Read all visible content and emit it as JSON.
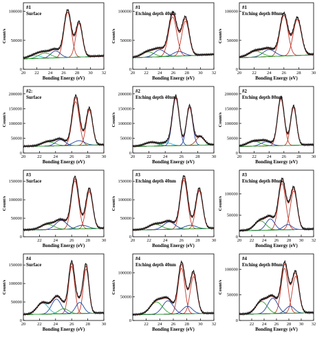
{
  "figure": {
    "colors": {
      "envelope": "#1a1a1a",
      "fit": "#c0392b",
      "background": "#2ca02c",
      "comp_blue": "#1f3f9c",
      "comp_cyan": "#17becf",
      "comp_green": "#2ca02c",
      "comp_red": "#c0392b",
      "comp_navy": "#1f3f9c"
    }
  },
  "chart_data": [
    {
      "type": "line",
      "sample_label": "#1",
      "condition": "Surface",
      "xlabel": "Bonding Energy (eV)",
      "ylabel": "Count/s",
      "xlim": [
        20,
        32
      ],
      "ylim": [
        0,
        115000
      ],
      "xticks": [
        20,
        22,
        24,
        26,
        28,
        30,
        32
      ],
      "yticks": [
        0,
        50000,
        100000
      ],
      "ytick_labels": [
        "0",
        "50000",
        "100000"
      ],
      "baseline": 18000,
      "peaks": [
        {
          "center": 26.6,
          "height": 78000,
          "width": 0.55,
          "color": "comp_red"
        },
        {
          "center": 28.3,
          "height": 58000,
          "width": 0.5,
          "color": "comp_red"
        },
        {
          "center": 24.8,
          "height": 12000,
          "width": 0.7,
          "color": "comp_blue"
        },
        {
          "center": 23.2,
          "height": 9000,
          "width": 0.9,
          "color": "comp_green"
        },
        {
          "center": 21.7,
          "height": 5000,
          "width": 0.9,
          "color": "comp_cyan"
        }
      ]
    },
    {
      "type": "line",
      "sample_label": "#1",
      "condition": "Etching depth 40nm",
      "xlabel": "Bonding Energy (eV)",
      "ylabel": "Count/s",
      "xlim": [
        20,
        32
      ],
      "ylim": [
        0,
        115000
      ],
      "xticks": [
        20,
        22,
        24,
        26,
        28,
        30,
        32
      ],
      "yticks": [
        0,
        50000,
        100000
      ],
      "ytick_labels": [
        "0",
        "50000",
        "100000"
      ],
      "baseline": 20000,
      "peaks": [
        {
          "center": 25.9,
          "height": 68000,
          "width": 0.6,
          "color": "comp_red"
        },
        {
          "center": 27.8,
          "height": 60000,
          "width": 0.55,
          "color": "comp_red"
        },
        {
          "center": 24.0,
          "height": 12000,
          "width": 0.8,
          "color": "comp_blue"
        },
        {
          "center": 22.3,
          "height": 9000,
          "width": 0.9,
          "color": "comp_green"
        },
        {
          "center": 26.8,
          "height": 8000,
          "width": 0.8,
          "color": "comp_navy"
        }
      ]
    },
    {
      "type": "line",
      "sample_label": "#1",
      "condition": "Etching depth 80nm",
      "xlabel": "Bonding Energy (eV)",
      "ylabel": "Count/s",
      "xlim": [
        20,
        30
      ],
      "ylim": [
        0,
        115000
      ],
      "xticks": [
        20,
        22,
        24,
        26,
        28,
        30
      ],
      "yticks": [
        0,
        50000,
        100000
      ],
      "ytick_labels": [
        "0",
        "50000",
        "100000"
      ],
      "baseline": 20000,
      "peaks": [
        {
          "center": 26.0,
          "height": 70000,
          "width": 0.55,
          "color": "comp_red"
        },
        {
          "center": 27.8,
          "height": 62000,
          "width": 0.55,
          "color": "comp_red"
        },
        {
          "center": 24.0,
          "height": 12000,
          "width": 0.8,
          "color": "comp_blue"
        },
        {
          "center": 22.2,
          "height": 10000,
          "width": 0.9,
          "color": "comp_green"
        }
      ]
    },
    {
      "type": "line",
      "sample_label": "#2:",
      "condition": "Surface",
      "xlabel": "Bonding Energy (eV)",
      "ylabel": "Count/s",
      "xlim": [
        20,
        30
      ],
      "ylim": [
        0,
        225000
      ],
      "xticks": [
        20,
        22,
        24,
        26,
        28,
        30
      ],
      "yticks": [
        0,
        50000,
        100000,
        150000,
        200000
      ],
      "ytick_labels": [
        "0",
        "50000",
        "100000",
        "150000",
        "200000"
      ],
      "baseline": 22000,
      "peaks": [
        {
          "center": 26.5,
          "height": 148000,
          "width": 0.45,
          "color": "comp_red"
        },
        {
          "center": 28.2,
          "height": 118000,
          "width": 0.4,
          "color": "comp_red"
        },
        {
          "center": 24.6,
          "height": 20000,
          "width": 0.6,
          "color": "comp_blue"
        },
        {
          "center": 23.1,
          "height": 14000,
          "width": 0.8,
          "color": "comp_green"
        },
        {
          "center": 26.9,
          "height": 16000,
          "width": 0.7,
          "color": "comp_navy"
        }
      ]
    },
    {
      "type": "line",
      "sample_label": "#2",
      "condition": "Etching depth 40nm",
      "xlabel": "Bonding Energy (eV)",
      "ylabel": "Count/s",
      "xlim": [
        20,
        30
      ],
      "ylim": [
        0,
        225000
      ],
      "xticks": [
        20,
        22,
        24,
        26,
        28,
        30
      ],
      "yticks": [
        0,
        50000,
        100000,
        150000,
        200000
      ],
      "ytick_labels": [
        "0",
        "50000",
        "100000",
        "150000",
        "200000"
      ],
      "baseline": 22000,
      "peaks": [
        {
          "center": 25.3,
          "height": 160000,
          "width": 0.42,
          "color": "comp_navy"
        },
        {
          "center": 27.0,
          "height": 128000,
          "width": 0.38,
          "color": "comp_navy"
        },
        {
          "center": 24.2,
          "height": 10000,
          "width": 0.6,
          "color": "comp_cyan"
        },
        {
          "center": 22.3,
          "height": 12000,
          "width": 0.8,
          "color": "comp_green"
        },
        {
          "center": 28.3,
          "height": 28000,
          "width": 0.5,
          "color": "comp_red"
        }
      ]
    },
    {
      "type": "line",
      "sample_label": "#2",
      "condition": "Etching depth 80nm",
      "xlabel": "Bonding Energy (eV)",
      "ylabel": "Count/s",
      "xlim": [
        20,
        30
      ],
      "ylim": [
        0,
        225000
      ],
      "xticks": [
        20,
        22,
        24,
        26,
        28,
        30
      ],
      "yticks": [
        0,
        50000,
        100000,
        150000,
        200000
      ],
      "ytick_labels": [
        "0",
        "50000",
        "100000",
        "150000",
        "200000"
      ],
      "baseline": 22000,
      "peaks": [
        {
          "center": 25.6,
          "height": 158000,
          "width": 0.45,
          "color": "comp_red"
        },
        {
          "center": 27.3,
          "height": 128000,
          "width": 0.4,
          "color": "comp_red"
        },
        {
          "center": 23.6,
          "height": 14000,
          "width": 0.7,
          "color": "comp_blue"
        },
        {
          "center": 22.0,
          "height": 16000,
          "width": 0.9,
          "color": "comp_green"
        }
      ]
    },
    {
      "type": "line",
      "sample_label": "#3",
      "condition": "Surface",
      "xlabel": "Bonding Energy (eV)",
      "ylabel": "Count/s",
      "xlim": [
        20,
        30
      ],
      "ylim": [
        0,
        180000
      ],
      "xticks": [
        22,
        24,
        26,
        28,
        30
      ],
      "yticks": [
        0,
        50000,
        100000,
        150000
      ],
      "ytick_labels": [
        "0",
        "50000",
        "100000",
        "150000"
      ],
      "baseline": 18000,
      "peaks": [
        {
          "center": 26.4,
          "height": 130000,
          "width": 0.45,
          "color": "comp_red"
        },
        {
          "center": 28.2,
          "height": 100000,
          "width": 0.42,
          "color": "comp_red"
        },
        {
          "center": 24.7,
          "height": 24000,
          "width": 0.7,
          "color": "comp_navy"
        },
        {
          "center": 23.0,
          "height": 14000,
          "width": 0.8,
          "color": "comp_green"
        },
        {
          "center": 27.3,
          "height": 10000,
          "width": 0.7,
          "color": "comp_blue"
        }
      ]
    },
    {
      "type": "line",
      "sample_label": "#3",
      "condition": "Etching depth 40nm",
      "xlabel": "Bonding Energy (eV)",
      "ylabel": "Count/s",
      "xlim": [
        20,
        30
      ],
      "ylim": [
        0,
        180000
      ],
      "xticks": [
        20,
        22,
        24,
        26,
        28,
        30
      ],
      "yticks": [
        0,
        50000,
        100000,
        150000
      ],
      "ytick_labels": [
        "0",
        "50000",
        "100000",
        "150000"
      ],
      "baseline": 18000,
      "peaks": [
        {
          "center": 26.3,
          "height": 132000,
          "width": 0.45,
          "color": "comp_red"
        },
        {
          "center": 28.2,
          "height": 102000,
          "width": 0.42,
          "color": "comp_red"
        },
        {
          "center": 24.5,
          "height": 20000,
          "width": 0.7,
          "color": "comp_blue"
        },
        {
          "center": 22.8,
          "height": 14000,
          "width": 0.8,
          "color": "comp_green"
        },
        {
          "center": 27.1,
          "height": 10000,
          "width": 0.7,
          "color": "comp_navy"
        }
      ]
    },
    {
      "type": "line",
      "sample_label": "#3",
      "condition": "Etching depth 80nm",
      "xlabel": "Bonding Energy (eV)",
      "ylabel": "Count/s",
      "xlim": [
        20,
        32
      ],
      "ylim": [
        0,
        155000
      ],
      "xticks": [
        20,
        22,
        24,
        26,
        28,
        30,
        32
      ],
      "yticks": [
        0,
        50000,
        100000
      ],
      "ytick_labels": [
        "0",
        "50000",
        "100000"
      ],
      "baseline": 14000,
      "peaks": [
        {
          "center": 26.9,
          "height": 108000,
          "width": 0.6,
          "color": "comp_red"
        },
        {
          "center": 28.8,
          "height": 90000,
          "width": 0.55,
          "color": "comp_red"
        },
        {
          "center": 25.0,
          "height": 26000,
          "width": 0.7,
          "color": "comp_navy"
        },
        {
          "center": 23.4,
          "height": 22000,
          "width": 0.9,
          "color": "comp_green"
        },
        {
          "center": 27.8,
          "height": 12000,
          "width": 0.7,
          "color": "comp_blue"
        }
      ]
    },
    {
      "type": "line",
      "sample_label": "#4",
      "condition": "Surface",
      "xlabel": "Bonding Energy (eV)",
      "ylabel": "Count/s",
      "xlim": [
        20,
        30
      ],
      "ylim": [
        0,
        180000
      ],
      "xticks": [
        20,
        22,
        24,
        26,
        28,
        30
      ],
      "yticks": [
        0,
        50000,
        100000,
        150000
      ],
      "ytick_labels": [
        "0",
        "50000",
        "100000",
        "150000"
      ],
      "baseline": 16000,
      "peaks": [
        {
          "center": 26.0,
          "height": 128000,
          "width": 0.38,
          "color": "comp_red"
        },
        {
          "center": 27.8,
          "height": 120000,
          "width": 0.35,
          "color": "comp_red"
        },
        {
          "center": 24.1,
          "height": 40000,
          "width": 0.6,
          "color": "comp_navy"
        },
        {
          "center": 22.4,
          "height": 30000,
          "width": 0.7,
          "color": "comp_cyan"
        },
        {
          "center": 27.0,
          "height": 30000,
          "width": 0.5,
          "color": "comp_blue"
        },
        {
          "center": 25.0,
          "height": 14000,
          "width": 0.6,
          "color": "comp_green"
        }
      ]
    },
    {
      "type": "line",
      "sample_label": "#4",
      "condition": "Etching depth 40nm",
      "xlabel": "Bonding Energy (eV)",
      "ylabel": "Count/s",
      "xlim": [
        20,
        32
      ],
      "ylim": [
        0,
        140000
      ],
      "xticks": [
        22,
        24,
        26,
        28,
        30,
        32
      ],
      "yticks": [
        0,
        50000,
        100000
      ],
      "ytick_labels": [
        "0",
        "50000",
        "100000"
      ],
      "baseline": 12000,
      "peaks": [
        {
          "center": 27.2,
          "height": 96000,
          "width": 0.5,
          "color": "comp_red"
        },
        {
          "center": 29.0,
          "height": 78000,
          "width": 0.5,
          "color": "comp_red"
        },
        {
          "center": 25.2,
          "height": 28000,
          "width": 0.8,
          "color": "comp_navy"
        },
        {
          "center": 23.5,
          "height": 26000,
          "width": 0.9,
          "color": "comp_green"
        },
        {
          "center": 28.1,
          "height": 16000,
          "width": 0.7,
          "color": "comp_blue"
        }
      ]
    },
    {
      "type": "line",
      "sample_label": "#4",
      "condition": "Etching depth 80nm",
      "xlabel": "Bonding Energy (eV)",
      "ylabel": "Count/s",
      "xlim": [
        20,
        32
      ],
      "ylim": [
        0,
        130000
      ],
      "xticks": [
        22,
        24,
        26,
        28,
        30,
        32
      ],
      "yticks": [
        0,
        50000,
        100000
      ],
      "ytick_labels": [
        "0",
        "50000",
        "100000"
      ],
      "baseline": 12000,
      "peaks": [
        {
          "center": 27.3,
          "height": 88000,
          "width": 0.55,
          "color": "comp_red"
        },
        {
          "center": 29.1,
          "height": 72000,
          "width": 0.55,
          "color": "comp_red"
        },
        {
          "center": 25.4,
          "height": 30000,
          "width": 0.8,
          "color": "comp_navy"
        },
        {
          "center": 23.6,
          "height": 24000,
          "width": 0.9,
          "color": "comp_green"
        },
        {
          "center": 28.2,
          "height": 14000,
          "width": 0.7,
          "color": "comp_blue"
        }
      ]
    }
  ]
}
